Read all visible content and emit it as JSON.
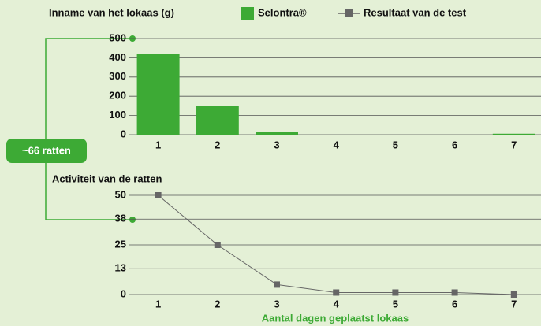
{
  "chart_data": [
    {
      "type": "bar",
      "title": "Inname van het lokaas (g)",
      "categories": [
        "1",
        "2",
        "3",
        "4",
        "5",
        "6",
        "7"
      ],
      "series": [
        {
          "name": "Selontra®",
          "color": "#3daa35",
          "values": [
            420,
            150,
            15,
            0,
            0,
            0,
            5
          ]
        }
      ],
      "ylim": [
        0,
        500
      ],
      "yticks": [
        0,
        100,
        200,
        300,
        400,
        500
      ],
      "grid": true,
      "annotation": "~66 ratten"
    },
    {
      "type": "line",
      "title": "Activiteit van de ratten",
      "categories": [
        "1",
        "2",
        "3",
        "4",
        "5",
        "6",
        "7"
      ],
      "series": [
        {
          "name": "Resultaat van de test",
          "color": "#666666",
          "values": [
            50,
            25,
            5,
            1,
            1,
            1,
            0
          ]
        }
      ],
      "ylim": [
        0,
        50
      ],
      "yticks": [
        0,
        13,
        25,
        38,
        50
      ],
      "grid": true,
      "xlabel": "Aantal dagen geplaatst lokaas"
    }
  ]
}
